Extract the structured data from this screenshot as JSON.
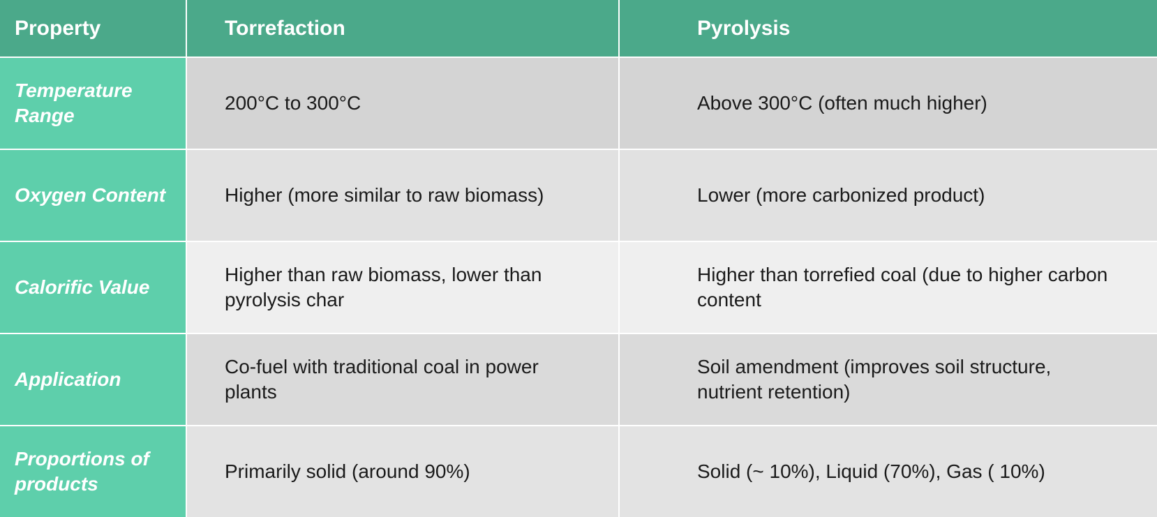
{
  "table": {
    "header": [
      "Property",
      "Torrefaction",
      "Pyrolysis"
    ],
    "rows": [
      [
        "Temperature Range",
        "200°C to 300°C",
        "Above 300°C (often much higher)"
      ],
      [
        "Oxygen Content",
        "Higher (more similar to raw biomass)",
        "Lower (more carbonized product)"
      ],
      [
        "Calorific Value",
        "Higher than raw biomass, lower than pyrolysis char",
        "Higher than torrefied coal (due to higher carbon content"
      ],
      [
        "Application",
        "Co-fuel with traditional coal in power plants",
        "Soil amendment (improves soil structure, nutrient retention)"
      ],
      [
        "Proportions of products",
        "Primarily solid (around 90%)",
        "Solid (~ 10%), Liquid (70%), Gas ( 10%)"
      ]
    ]
  }
}
